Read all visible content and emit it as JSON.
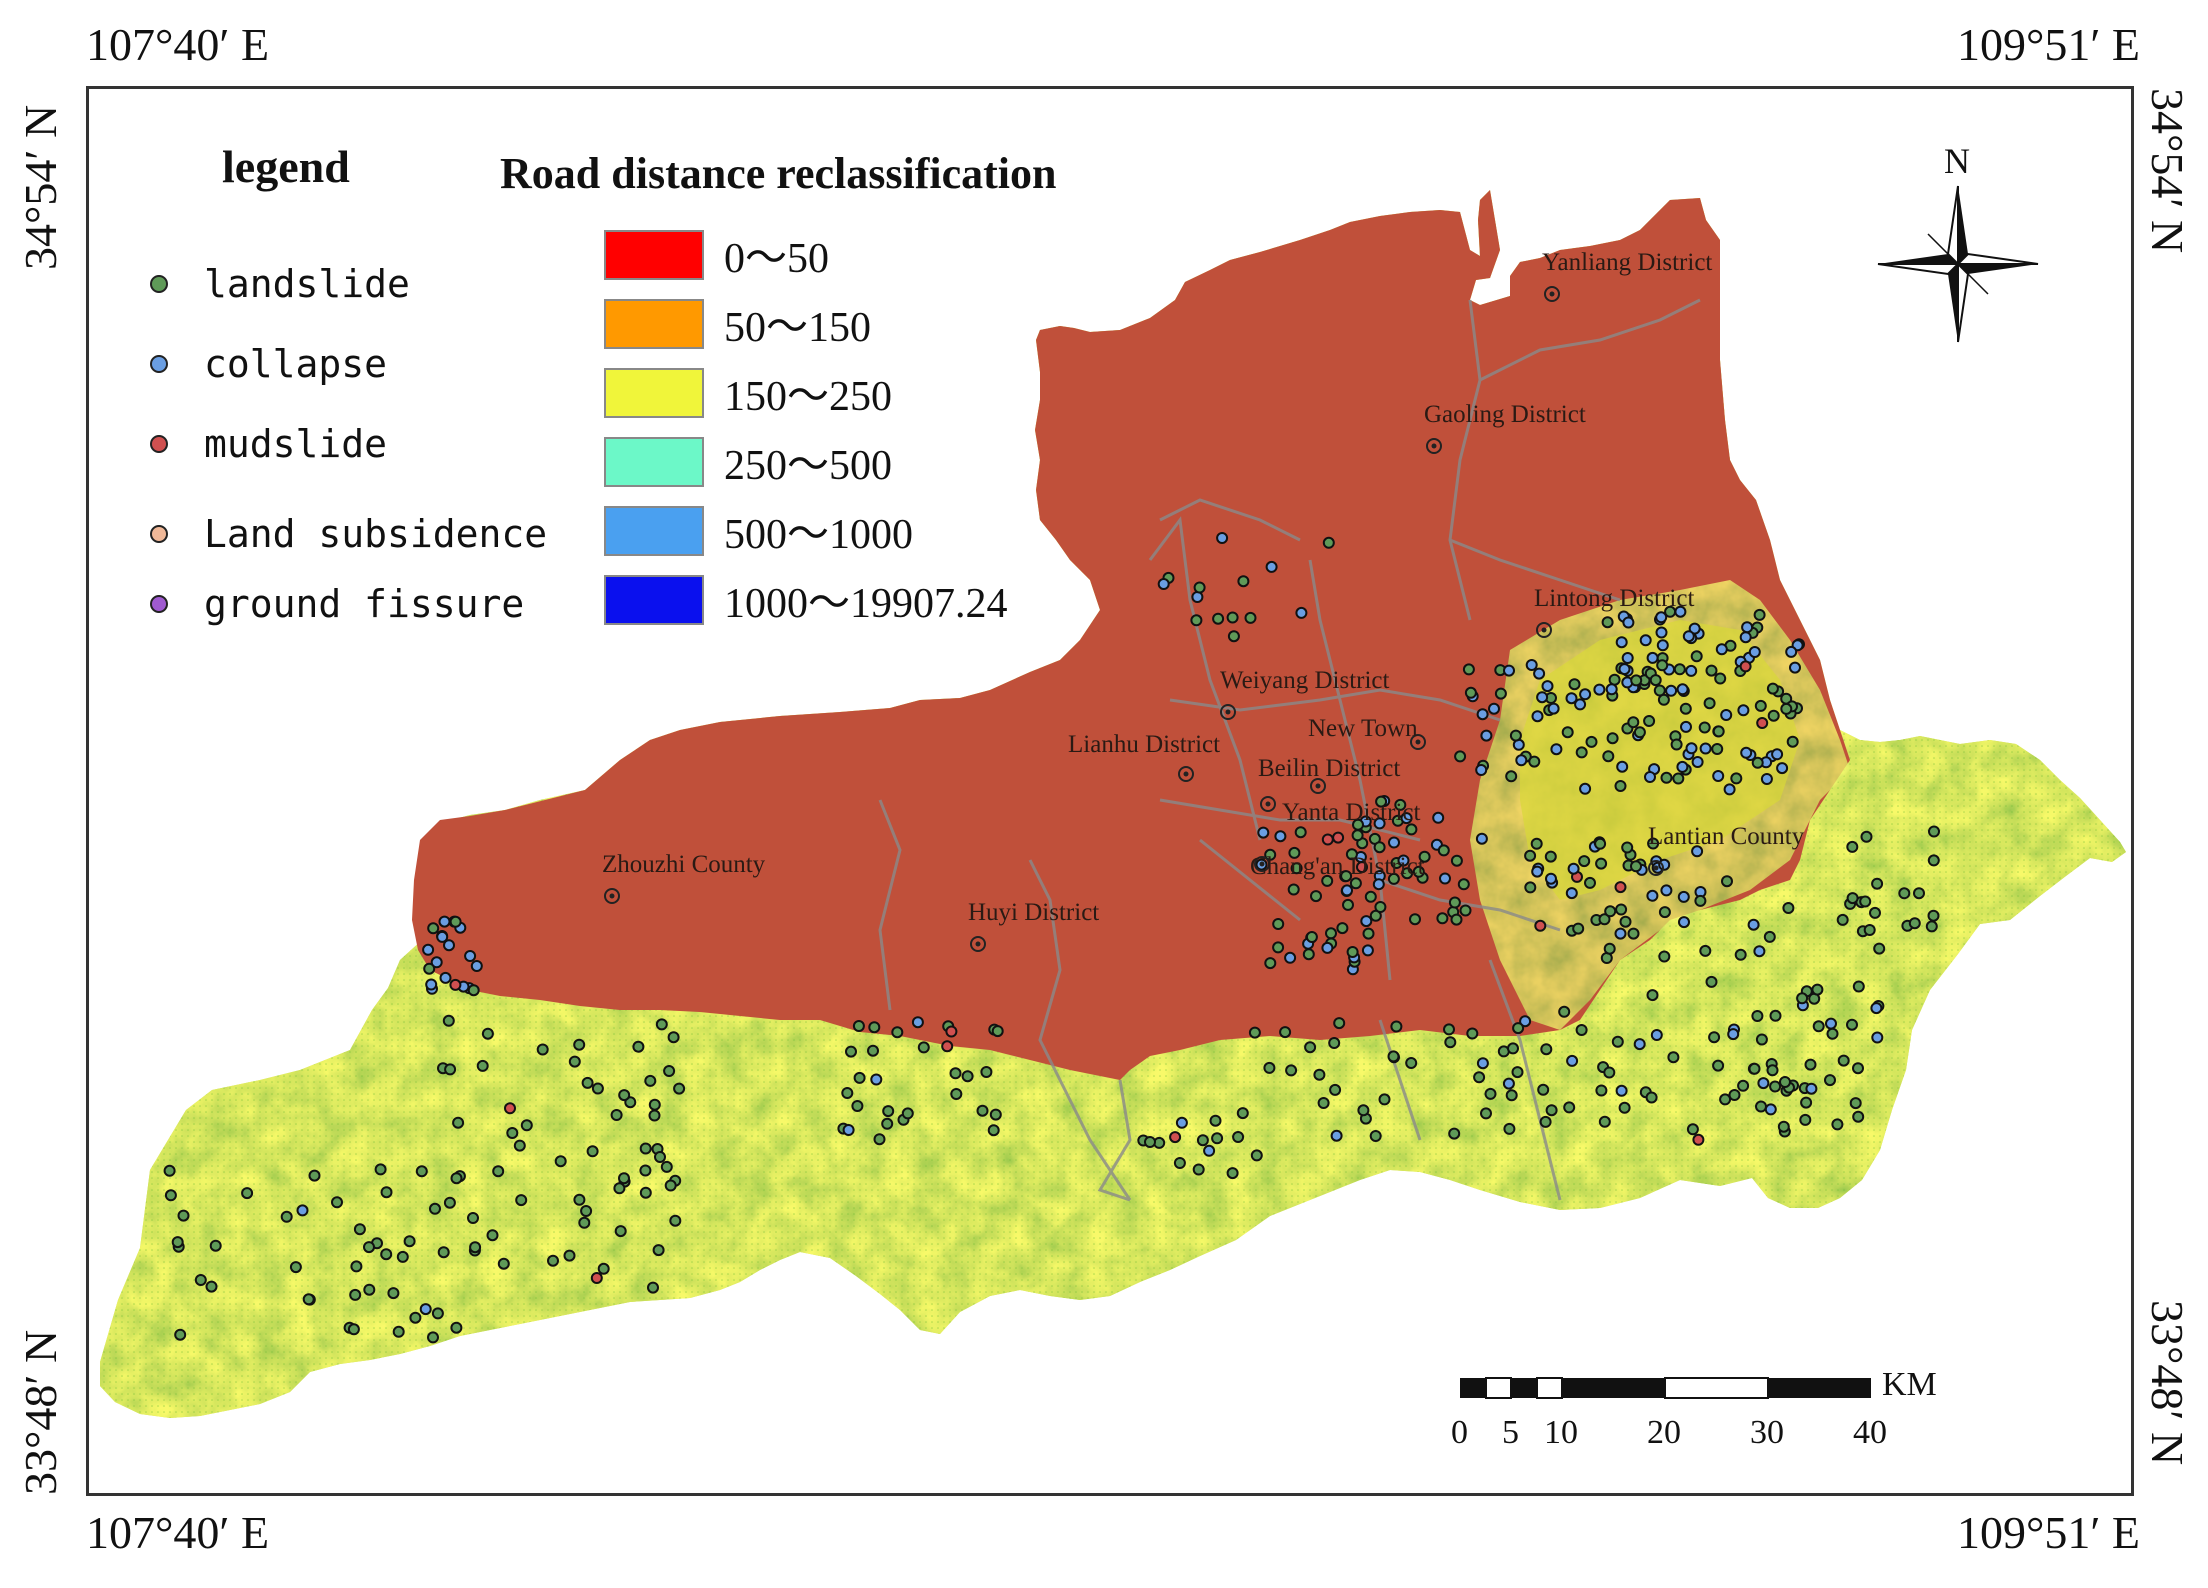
{
  "coords": {
    "top_left": "107°40′ E",
    "top_right": "109°51′ E",
    "bottom_left": "107°40′ E",
    "bottom_right": "109°51′ E",
    "left_top": "34°54′ N",
    "left_bottom": "33°48′ N",
    "right_top": "34°54′ N",
    "right_bottom": "33°48′ N"
  },
  "legend": {
    "title": "legend",
    "items": [
      {
        "label": "landslide",
        "color": "#5f9a58"
      },
      {
        "label": "collapse",
        "color": "#6a9ee2"
      },
      {
        "label": "mudslide",
        "color": "#d05050"
      },
      {
        "label": "Land subsidence",
        "color": "#f0b898"
      },
      {
        "label": "ground fissure",
        "color": "#a05ad0"
      }
    ]
  },
  "classification": {
    "title": "Road distance reclassification",
    "classes": [
      {
        "label": "0～50",
        "color": "#ff0000"
      },
      {
        "label": "50～150",
        "color": "#ff9900"
      },
      {
        "label": "150～250",
        "color": "#f0f53a"
      },
      {
        "label": "250～500",
        "color": "#6cf8c8"
      },
      {
        "label": "500～1000",
        "color": "#4aa0f0"
      },
      {
        "label": "1000～19907.24",
        "color": "#0a10ee"
      }
    ]
  },
  "places": [
    {
      "name": "Yanliang District"
    },
    {
      "name": "Gaoling District"
    },
    {
      "name": "Lintong District"
    },
    {
      "name": "Weiyang District"
    },
    {
      "name": "Lianhu District"
    },
    {
      "name": "New Town"
    },
    {
      "name": "Beilin District"
    },
    {
      "name": "Yanta District"
    },
    {
      "name": "Chang'an District"
    },
    {
      "name": "Lantian County"
    },
    {
      "name": "Zhouzhi County"
    },
    {
      "name": "Huyi District"
    }
  ],
  "north_label": "N",
  "scale": {
    "unit": "KM",
    "ticks": [
      "0",
      "5",
      "10",
      "20",
      "30",
      "40"
    ]
  },
  "colors": {
    "urban": "#c0503a",
    "mountain_yellow": "#d8e040",
    "mountain_green": "#a8d848",
    "mountain_orange": "#e8a030",
    "boundary": "#8a8a8a"
  }
}
